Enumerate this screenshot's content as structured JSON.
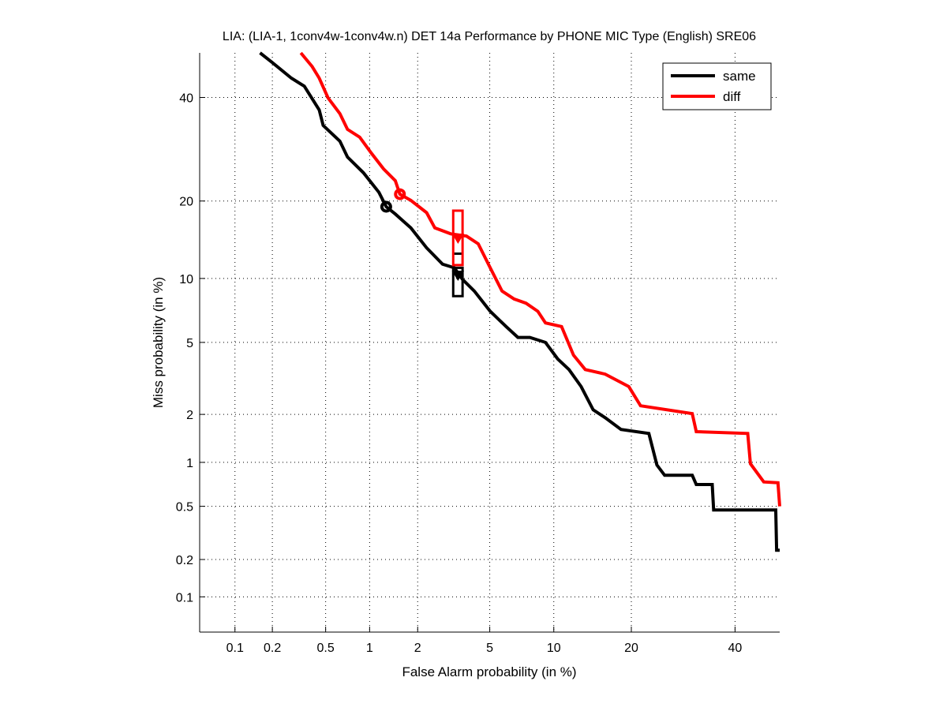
{
  "chart_data": {
    "type": "line",
    "scale": "normal-deviate (DET)",
    "title": "LIA: (LIA-1, 1conv4w-1conv4w.n) DET 14a Performance by PHONE MIC Type (English) SRE06",
    "xlabel": "False Alarm probability (in %)",
    "ylabel": "Miss probability (in %)",
    "xlim": [
      0.05,
      50
    ],
    "ylim": [
      0.05,
      50
    ],
    "grid": true,
    "legend_position": "top-right",
    "xticks": [
      {
        "value": 0.1,
        "label": "0.1"
      },
      {
        "value": 0.2,
        "label": "0.2"
      },
      {
        "value": 0.5,
        "label": "0.5"
      },
      {
        "value": 1,
        "label": "1"
      },
      {
        "value": 2,
        "label": "2"
      },
      {
        "value": 5,
        "label": "5"
      },
      {
        "value": 10,
        "label": "10"
      },
      {
        "value": 20,
        "label": "20"
      },
      {
        "value": 40,
        "label": "40"
      }
    ],
    "yticks": [
      {
        "value": 0.1,
        "label": "0.1"
      },
      {
        "value": 0.2,
        "label": "0.2"
      },
      {
        "value": 0.5,
        "label": "0.5"
      },
      {
        "value": 1,
        "label": "1"
      },
      {
        "value": 2,
        "label": "2"
      },
      {
        "value": 5,
        "label": "5"
      },
      {
        "value": 10,
        "label": "10"
      },
      {
        "value": 20,
        "label": "20"
      },
      {
        "value": 40,
        "label": "40"
      }
    ],
    "series": [
      {
        "name": "same",
        "color": "#000000",
        "points": [
          [
            0.16,
            50
          ],
          [
            0.2,
            47.8
          ],
          [
            0.28,
            44.3
          ],
          [
            0.35,
            42.5
          ],
          [
            0.45,
            37.3
          ],
          [
            0.48,
            34
          ],
          [
            0.63,
            30.8
          ],
          [
            0.71,
            27.7
          ],
          [
            0.91,
            24.8
          ],
          [
            1.15,
            21.4
          ],
          [
            1.28,
            19.1
          ],
          [
            1.46,
            18.0
          ],
          [
            1.82,
            16.0
          ],
          [
            2.26,
            13.4
          ],
          [
            2.79,
            11.5
          ],
          [
            3.25,
            11.1
          ],
          [
            3.6,
            9.9
          ],
          [
            4.16,
            8.8
          ],
          [
            5.03,
            7.1
          ],
          [
            6.03,
            6.0
          ],
          [
            6.88,
            5.3
          ],
          [
            7.82,
            5.3
          ],
          [
            9.2,
            5.0
          ],
          [
            10.4,
            4.1
          ],
          [
            11.6,
            3.6
          ],
          [
            13.0,
            2.9
          ],
          [
            14.5,
            2.13
          ],
          [
            16.1,
            1.91
          ],
          [
            18.4,
            1.62
          ],
          [
            22.9,
            1.53
          ],
          [
            24.3,
            0.96
          ],
          [
            25.7,
            0.82
          ],
          [
            31.0,
            0.82
          ],
          [
            31.8,
            0.71
          ],
          [
            35.1,
            0.71
          ],
          [
            35.4,
            0.47
          ],
          [
            49.1,
            0.47
          ],
          [
            49.3,
            0.236
          ],
          [
            50,
            0.236
          ]
        ],
        "min_dcf_point": [
          1.28,
          19.1
        ],
        "actual_dcf_point": [
          3.4,
          10.3
        ],
        "actual_dcf_box": {
          "x": [
            3.2,
            3.6
          ],
          "y": [
            8.35,
            11.1
          ]
        },
        "dcf_tick": [
          3.4,
          12.7
        ]
      },
      {
        "name": "diff",
        "color": "#ff0000",
        "points": [
          [
            0.33,
            50
          ],
          [
            0.4,
            46.9
          ],
          [
            0.45,
            44.3
          ],
          [
            0.52,
            39.9
          ],
          [
            0.63,
            36.5
          ],
          [
            0.71,
            33.2
          ],
          [
            0.86,
            31.6
          ],
          [
            1.03,
            28.4
          ],
          [
            1.23,
            25.5
          ],
          [
            1.46,
            23.4
          ],
          [
            1.56,
            21.1
          ],
          [
            1.82,
            20.1
          ],
          [
            2.26,
            18.2
          ],
          [
            2.52,
            16.0
          ],
          [
            3.1,
            15.2
          ],
          [
            3.78,
            14.9
          ],
          [
            4.36,
            13.9
          ],
          [
            5.03,
            11.1
          ],
          [
            5.76,
            8.8
          ],
          [
            6.6,
            8.1
          ],
          [
            7.5,
            7.75
          ],
          [
            8.5,
            7.1
          ],
          [
            9.2,
            6.25
          ],
          [
            10.8,
            6.0
          ],
          [
            12.1,
            4.3
          ],
          [
            13.5,
            3.6
          ],
          [
            16.1,
            3.4
          ],
          [
            19.6,
            2.9
          ],
          [
            21.5,
            2.25
          ],
          [
            31.0,
            2.02
          ],
          [
            31.8,
            1.57
          ],
          [
            42.8,
            1.53
          ],
          [
            43.4,
            0.98
          ],
          [
            46.4,
            0.74
          ],
          [
            49.6,
            0.73
          ],
          [
            50,
            0.5
          ]
        ],
        "min_dcf_point": [
          1.56,
          21.1
        ],
        "actual_dcf_point": [
          3.4,
          14.6
        ],
        "actual_dcf_box": {
          "x": [
            3.2,
            3.6
          ],
          "y": [
            11.4,
            18.5
          ]
        }
      }
    ]
  }
}
